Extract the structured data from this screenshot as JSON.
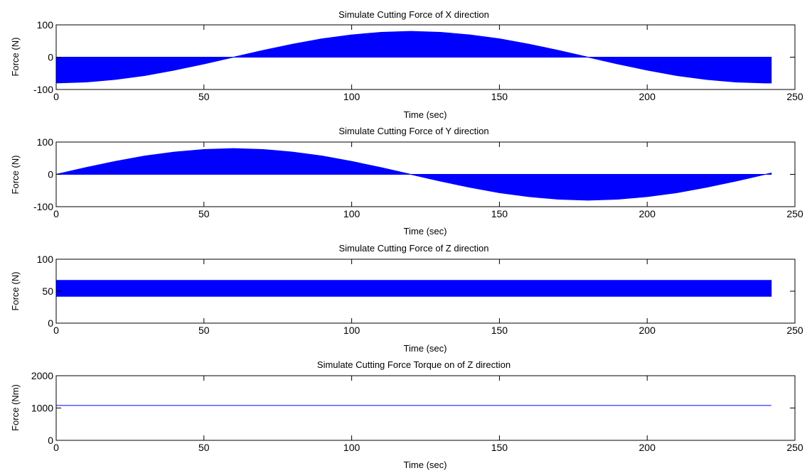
{
  "chart_data": [
    {
      "type": "area",
      "title": "Simulate Cutting Force of X direction",
      "xlabel": "Time (sec)",
      "ylabel": "Force (N)",
      "xlim": [
        0,
        250
      ],
      "ylim": [
        -100,
        100
      ],
      "xticks": [
        0,
        50,
        100,
        150,
        200,
        250
      ],
      "yticks": [
        -100,
        0,
        100
      ],
      "grid": false,
      "color": "#0000ff",
      "series": [
        {
          "fill_to": 0,
          "x": [
            0,
            10,
            20,
            30,
            40,
            50,
            60,
            70,
            80,
            90,
            100,
            110,
            120,
            130,
            140,
            150,
            160,
            170,
            180,
            190,
            200,
            210,
            220,
            230,
            240,
            242
          ],
          "y": [
            -80,
            -77,
            -69,
            -57,
            -40,
            -21,
            0,
            21,
            40,
            57,
            69,
            77,
            80,
            77,
            69,
            57,
            40,
            21,
            0,
            -21,
            -40,
            -57,
            -69,
            -77,
            -80,
            -80
          ]
        }
      ]
    },
    {
      "type": "area",
      "title": "Simulate Cutting Force of Y direction",
      "xlabel": "Time (sec)",
      "ylabel": "Force (N)",
      "xlim": [
        0,
        250
      ],
      "ylim": [
        -100,
        100
      ],
      "xticks": [
        0,
        50,
        100,
        150,
        200,
        250
      ],
      "yticks": [
        -100,
        0,
        100
      ],
      "grid": false,
      "color": "#0000ff",
      "series": [
        {
          "fill_to": 0,
          "x": [
            0,
            10,
            20,
            30,
            40,
            50,
            60,
            70,
            80,
            90,
            100,
            110,
            120,
            130,
            140,
            150,
            160,
            170,
            180,
            190,
            200,
            210,
            220,
            230,
            240,
            242
          ],
          "y": [
            0,
            21,
            40,
            57,
            69,
            77,
            80,
            77,
            69,
            57,
            40,
            21,
            0,
            -21,
            -40,
            -57,
            -69,
            -77,
            -80,
            -77,
            -69,
            -57,
            -40,
            -21,
            0,
            4
          ]
        }
      ]
    },
    {
      "type": "area",
      "title": "Simulate Cutting Force of Z direction",
      "xlabel": "Time (sec)",
      "ylabel": "Force (N)",
      "xlim": [
        0,
        250
      ],
      "ylim": [
        0,
        100
      ],
      "xticks": [
        0,
        50,
        100,
        150,
        200,
        250
      ],
      "yticks": [
        0,
        50,
        100
      ],
      "grid": false,
      "color": "#0000ff",
      "series": [
        {
          "band": true,
          "x": [
            0,
            242
          ],
          "y_low": [
            42,
            42
          ],
          "y_high": [
            67,
            67
          ]
        }
      ]
    },
    {
      "type": "line",
      "title": "Simulate Cutting Force Torque on of Z direction",
      "xlabel": "Time (sec)",
      "ylabel": "Force (Nm)",
      "xlim": [
        0,
        250
      ],
      "ylim": [
        0,
        2000
      ],
      "xticks": [
        0,
        50,
        100,
        150,
        200,
        250
      ],
      "yticks": [
        0,
        1000,
        2000
      ],
      "grid": false,
      "color": "#0000ff",
      "series": [
        {
          "x": [
            0,
            242
          ],
          "y": [
            1080,
            1080
          ]
        }
      ]
    }
  ]
}
